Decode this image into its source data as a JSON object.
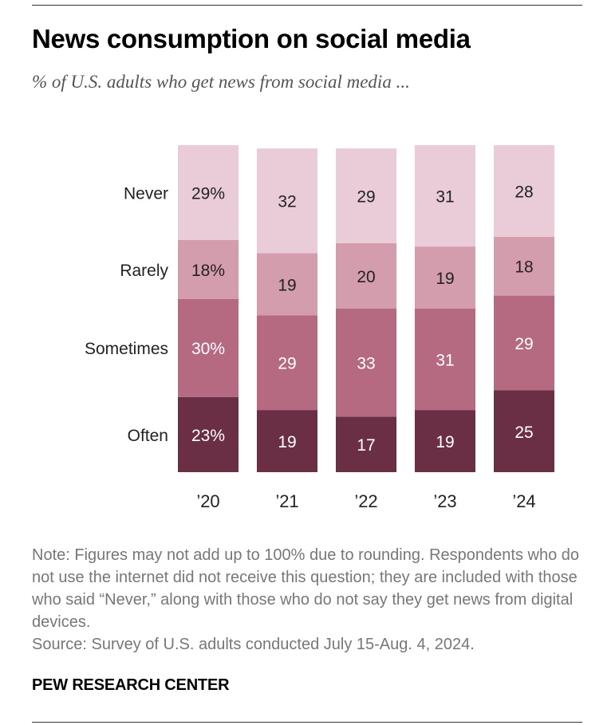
{
  "title": "News consumption on social media",
  "subtitle": "% of U.S. adults who get news from social media ...",
  "note": "Note: Figures may not add up to 100% due to rounding. Respondents who do not use the internet did not receive this question; they are included with those who said “Never,” along with those who do not say they get news from digital devices.",
  "source": "Source: Survey of U.S. adults conducted July 15-Aug. 4, 2024.",
  "brand": "PEW RESEARCH CENTER",
  "chart_data": {
    "type": "bar",
    "stacked": true,
    "title": "News consumption on social media",
    "categories": [
      "’20",
      "’21",
      "’22",
      "’23",
      "’24"
    ],
    "series": [
      {
        "name": "Often",
        "values": [
          23,
          19,
          17,
          19,
          25
        ],
        "labels": [
          "23%",
          "19",
          "17",
          "19",
          "25"
        ],
        "color": "#6b2f45",
        "text_color": "#ffffff"
      },
      {
        "name": "Sometimes",
        "values": [
          30,
          29,
          33,
          31,
          29
        ],
        "labels": [
          "30%",
          "29",
          "33",
          "31",
          "29"
        ],
        "color": "#b56a82",
        "text_color": "#ffffff"
      },
      {
        "name": "Rarely",
        "values": [
          18,
          19,
          20,
          19,
          18
        ],
        "labels": [
          "18%",
          "19",
          "20",
          "19",
          "18"
        ],
        "color": "#d49dae",
        "text_color": "#222222"
      },
      {
        "name": "Never",
        "values": [
          29,
          32,
          29,
          31,
          28
        ],
        "labels": [
          "29%",
          "32",
          "29",
          "31",
          "28"
        ],
        "color": "#e9ccd7",
        "text_color": "#222222"
      }
    ],
    "legend": "left-of-first-bar",
    "ylim": [
      0,
      100
    ],
    "xlabel": "",
    "ylabel": ""
  }
}
